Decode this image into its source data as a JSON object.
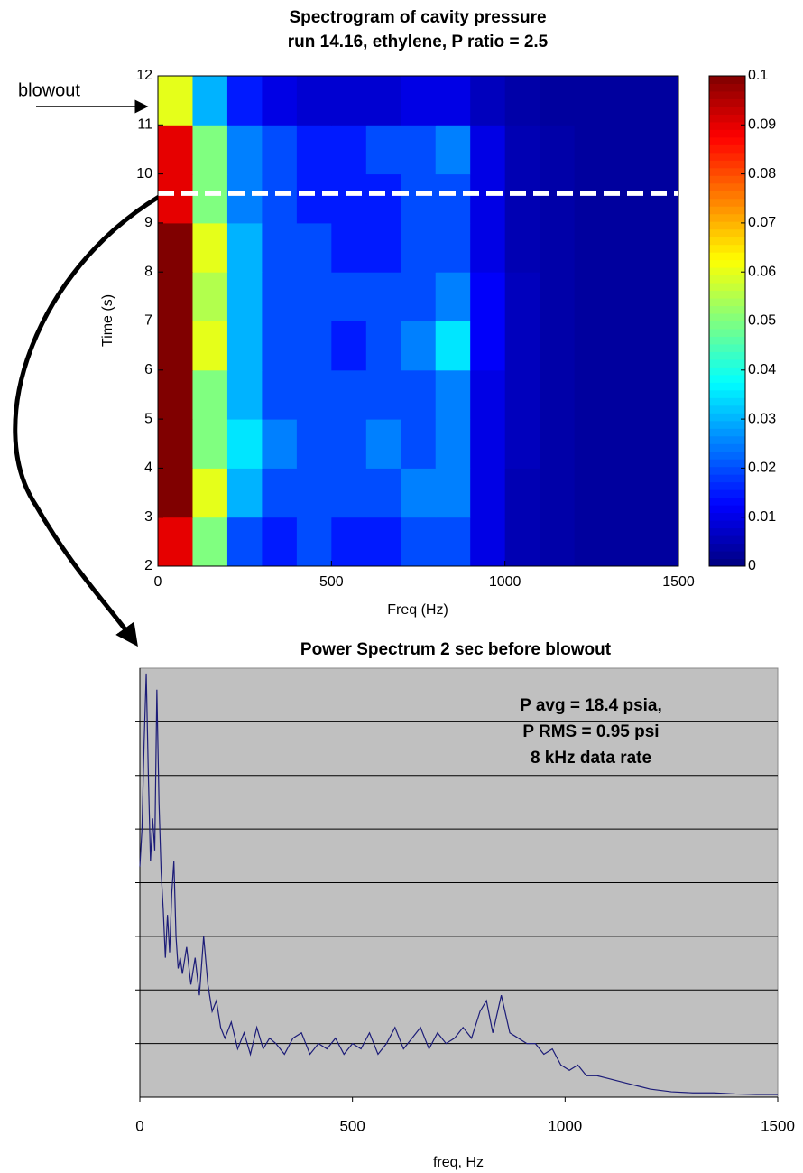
{
  "chart_data": [
    {
      "type": "heatmap",
      "title": "Spectrogram of cavity pressure",
      "subtitle": "run 14.16, ethylene,  P ratio = 2.5",
      "x_label": "Freq (Hz)",
      "y_label": "Time (s)",
      "annotation": "blowout",
      "hlines": [
        9.6
      ],
      "xlim": [
        0,
        1500
      ],
      "xticks": [
        0,
        500,
        1000,
        1500
      ],
      "ylim": [
        2,
        12
      ],
      "yticks": [
        2,
        3,
        4,
        5,
        6,
        7,
        8,
        9,
        10,
        11,
        12
      ],
      "xbins": [
        0,
        100,
        200,
        300,
        400,
        500,
        600,
        700,
        800,
        900,
        1000,
        1100,
        1200,
        1300,
        1400,
        1500
      ],
      "ybins": [
        2,
        3,
        4,
        5,
        6,
        7,
        8,
        9,
        10,
        11,
        12
      ],
      "colormap": "jet",
      "clim": [
        0,
        0.1
      ],
      "cticks": [
        0,
        0.01,
        0.02,
        0.03,
        0.04,
        0.05,
        0.06,
        0.07,
        0.08,
        0.09,
        0.1
      ],
      "z": [
        [
          0.09,
          0.05,
          0.02,
          0.015,
          0.02,
          0.015,
          0.015,
          0.02,
          0.02,
          0.01,
          0.005,
          0.004,
          0.003,
          0.003,
          0.003
        ],
        [
          0.1,
          0.06,
          0.03,
          0.02,
          0.02,
          0.02,
          0.02,
          0.025,
          0.025,
          0.01,
          0.005,
          0.004,
          0.003,
          0.003,
          0.003
        ],
        [
          0.1,
          0.05,
          0.035,
          0.025,
          0.02,
          0.02,
          0.025,
          0.02,
          0.025,
          0.01,
          0.006,
          0.004,
          0.003,
          0.003,
          0.003
        ],
        [
          0.1,
          0.05,
          0.03,
          0.02,
          0.02,
          0.02,
          0.02,
          0.02,
          0.025,
          0.01,
          0.006,
          0.004,
          0.003,
          0.003,
          0.003
        ],
        [
          0.1,
          0.06,
          0.03,
          0.02,
          0.02,
          0.015,
          0.02,
          0.025,
          0.035,
          0.012,
          0.006,
          0.004,
          0.003,
          0.003,
          0.003
        ],
        [
          0.1,
          0.055,
          0.03,
          0.02,
          0.02,
          0.02,
          0.02,
          0.02,
          0.025,
          0.012,
          0.006,
          0.004,
          0.003,
          0.003,
          0.003
        ],
        [
          0.1,
          0.06,
          0.03,
          0.02,
          0.02,
          0.015,
          0.015,
          0.02,
          0.02,
          0.01,
          0.005,
          0.004,
          0.003,
          0.003,
          0.003
        ],
        [
          0.09,
          0.05,
          0.025,
          0.02,
          0.015,
          0.015,
          0.015,
          0.02,
          0.02,
          0.01,
          0.005,
          0.004,
          0.003,
          0.003,
          0.003
        ],
        [
          0.09,
          0.05,
          0.025,
          0.02,
          0.015,
          0.015,
          0.02,
          0.02,
          0.025,
          0.01,
          0.005,
          0.004,
          0.003,
          0.003,
          0.003
        ],
        [
          0.06,
          0.03,
          0.015,
          0.01,
          0.008,
          0.008,
          0.008,
          0.01,
          0.01,
          0.006,
          0.004,
          0.003,
          0.003,
          0.003,
          0.003
        ]
      ]
    },
    {
      "type": "line",
      "title": "Power Spectrum 2 sec before blowout",
      "x_label": "freq, Hz",
      "annotation_lines": [
        "P avg = 18.4 psia,",
        "P RMS = 0.95 psi",
        "8 kHz data rate"
      ],
      "xlim": [
        0,
        1500
      ],
      "xticks": [
        0,
        500,
        1000,
        1500
      ],
      "ylim": [
        0,
        8
      ],
      "ygridlines": [
        1,
        2,
        3,
        4,
        5,
        6,
        7
      ],
      "background": "#c0c0c0",
      "color": "#1c1c78",
      "x": [
        0,
        5,
        10,
        15,
        20,
        25,
        30,
        35,
        40,
        45,
        50,
        55,
        60,
        65,
        70,
        75,
        80,
        85,
        90,
        95,
        100,
        110,
        120,
        130,
        140,
        150,
        160,
        170,
        180,
        190,
        200,
        215,
        230,
        245,
        260,
        275,
        290,
        305,
        320,
        340,
        360,
        380,
        400,
        420,
        440,
        460,
        480,
        500,
        520,
        540,
        560,
        580,
        600,
        620,
        640,
        660,
        680,
        700,
        720,
        740,
        760,
        780,
        800,
        815,
        830,
        850,
        870,
        890,
        910,
        930,
        950,
        970,
        990,
        1010,
        1030,
        1050,
        1075,
        1100,
        1125,
        1150,
        1175,
        1200,
        1250,
        1300,
        1350,
        1400,
        1450,
        1500
      ],
      "values": [
        4.3,
        5.0,
        6.6,
        7.9,
        6.0,
        4.4,
        5.2,
        4.6,
        7.6,
        5.5,
        4.2,
        3.5,
        2.6,
        3.4,
        2.7,
        3.8,
        4.4,
        3.0,
        2.4,
        2.6,
        2.3,
        2.8,
        2.1,
        2.6,
        1.9,
        3.0,
        2.1,
        1.6,
        1.8,
        1.3,
        1.1,
        1.4,
        0.9,
        1.2,
        0.8,
        1.3,
        0.9,
        1.1,
        1.0,
        0.8,
        1.1,
        1.2,
        0.8,
        1.0,
        0.9,
        1.1,
        0.8,
        1.0,
        0.9,
        1.2,
        0.8,
        1.0,
        1.3,
        0.9,
        1.1,
        1.3,
        0.9,
        1.2,
        1.0,
        1.1,
        1.3,
        1.1,
        1.6,
        1.8,
        1.2,
        1.9,
        1.2,
        1.1,
        1.0,
        1.0,
        0.8,
        0.9,
        0.6,
        0.5,
        0.6,
        0.4,
        0.4,
        0.35,
        0.3,
        0.25,
        0.2,
        0.15,
        0.1,
        0.08,
        0.08,
        0.06,
        0.05,
        0.05
      ]
    }
  ]
}
